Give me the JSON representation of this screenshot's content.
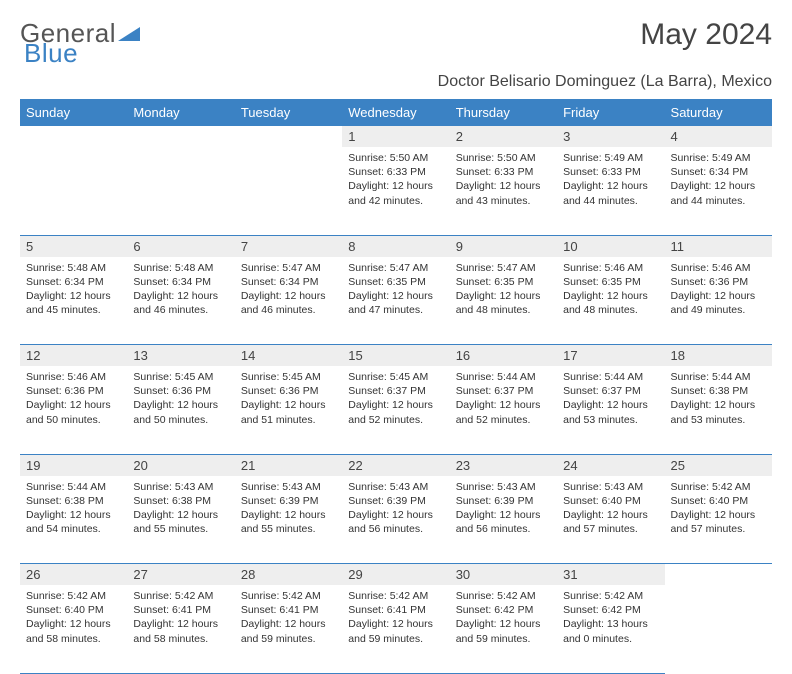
{
  "logo": {
    "text1": "General",
    "text2": "Blue"
  },
  "title": "May 2024",
  "location": "Doctor Belisario Dominguez (La Barra), Mexico",
  "colors": {
    "header_bg": "#3b82c4",
    "header_fg": "#ffffff",
    "daynum_bg": "#eeeeee",
    "border": "#3b82c4",
    "text": "#333333"
  },
  "day_headers": [
    "Sunday",
    "Monday",
    "Tuesday",
    "Wednesday",
    "Thursday",
    "Friday",
    "Saturday"
  ],
  "weeks": [
    [
      {
        "n": "",
        "sunrise": "",
        "sunset": "",
        "daylight": ""
      },
      {
        "n": "",
        "sunrise": "",
        "sunset": "",
        "daylight": ""
      },
      {
        "n": "",
        "sunrise": "",
        "sunset": "",
        "daylight": ""
      },
      {
        "n": "1",
        "sunrise": "5:50 AM",
        "sunset": "6:33 PM",
        "daylight": "12 hours and 42 minutes."
      },
      {
        "n": "2",
        "sunrise": "5:50 AM",
        "sunset": "6:33 PM",
        "daylight": "12 hours and 43 minutes."
      },
      {
        "n": "3",
        "sunrise": "5:49 AM",
        "sunset": "6:33 PM",
        "daylight": "12 hours and 44 minutes."
      },
      {
        "n": "4",
        "sunrise": "5:49 AM",
        "sunset": "6:34 PM",
        "daylight": "12 hours and 44 minutes."
      }
    ],
    [
      {
        "n": "5",
        "sunrise": "5:48 AM",
        "sunset": "6:34 PM",
        "daylight": "12 hours and 45 minutes."
      },
      {
        "n": "6",
        "sunrise": "5:48 AM",
        "sunset": "6:34 PM",
        "daylight": "12 hours and 46 minutes."
      },
      {
        "n": "7",
        "sunrise": "5:47 AM",
        "sunset": "6:34 PM",
        "daylight": "12 hours and 46 minutes."
      },
      {
        "n": "8",
        "sunrise": "5:47 AM",
        "sunset": "6:35 PM",
        "daylight": "12 hours and 47 minutes."
      },
      {
        "n": "9",
        "sunrise": "5:47 AM",
        "sunset": "6:35 PM",
        "daylight": "12 hours and 48 minutes."
      },
      {
        "n": "10",
        "sunrise": "5:46 AM",
        "sunset": "6:35 PM",
        "daylight": "12 hours and 48 minutes."
      },
      {
        "n": "11",
        "sunrise": "5:46 AM",
        "sunset": "6:36 PM",
        "daylight": "12 hours and 49 minutes."
      }
    ],
    [
      {
        "n": "12",
        "sunrise": "5:46 AM",
        "sunset": "6:36 PM",
        "daylight": "12 hours and 50 minutes."
      },
      {
        "n": "13",
        "sunrise": "5:45 AM",
        "sunset": "6:36 PM",
        "daylight": "12 hours and 50 minutes."
      },
      {
        "n": "14",
        "sunrise": "5:45 AM",
        "sunset": "6:36 PM",
        "daylight": "12 hours and 51 minutes."
      },
      {
        "n": "15",
        "sunrise": "5:45 AM",
        "sunset": "6:37 PM",
        "daylight": "12 hours and 52 minutes."
      },
      {
        "n": "16",
        "sunrise": "5:44 AM",
        "sunset": "6:37 PM",
        "daylight": "12 hours and 52 minutes."
      },
      {
        "n": "17",
        "sunrise": "5:44 AM",
        "sunset": "6:37 PM",
        "daylight": "12 hours and 53 minutes."
      },
      {
        "n": "18",
        "sunrise": "5:44 AM",
        "sunset": "6:38 PM",
        "daylight": "12 hours and 53 minutes."
      }
    ],
    [
      {
        "n": "19",
        "sunrise": "5:44 AM",
        "sunset": "6:38 PM",
        "daylight": "12 hours and 54 minutes."
      },
      {
        "n": "20",
        "sunrise": "5:43 AM",
        "sunset": "6:38 PM",
        "daylight": "12 hours and 55 minutes."
      },
      {
        "n": "21",
        "sunrise": "5:43 AM",
        "sunset": "6:39 PM",
        "daylight": "12 hours and 55 minutes."
      },
      {
        "n": "22",
        "sunrise": "5:43 AM",
        "sunset": "6:39 PM",
        "daylight": "12 hours and 56 minutes."
      },
      {
        "n": "23",
        "sunrise": "5:43 AM",
        "sunset": "6:39 PM",
        "daylight": "12 hours and 56 minutes."
      },
      {
        "n": "24",
        "sunrise": "5:43 AM",
        "sunset": "6:40 PM",
        "daylight": "12 hours and 57 minutes."
      },
      {
        "n": "25",
        "sunrise": "5:42 AM",
        "sunset": "6:40 PM",
        "daylight": "12 hours and 57 minutes."
      }
    ],
    [
      {
        "n": "26",
        "sunrise": "5:42 AM",
        "sunset": "6:40 PM",
        "daylight": "12 hours and 58 minutes."
      },
      {
        "n": "27",
        "sunrise": "5:42 AM",
        "sunset": "6:41 PM",
        "daylight": "12 hours and 58 minutes."
      },
      {
        "n": "28",
        "sunrise": "5:42 AM",
        "sunset": "6:41 PM",
        "daylight": "12 hours and 59 minutes."
      },
      {
        "n": "29",
        "sunrise": "5:42 AM",
        "sunset": "6:41 PM",
        "daylight": "12 hours and 59 minutes."
      },
      {
        "n": "30",
        "sunrise": "5:42 AM",
        "sunset": "6:42 PM",
        "daylight": "12 hours and 59 minutes."
      },
      {
        "n": "31",
        "sunrise": "5:42 AM",
        "sunset": "6:42 PM",
        "daylight": "13 hours and 0 minutes."
      },
      {
        "n": "",
        "sunrise": "",
        "sunset": "",
        "daylight": ""
      }
    ]
  ],
  "labels": {
    "sunrise": "Sunrise:",
    "sunset": "Sunset:",
    "daylight": "Daylight:"
  }
}
